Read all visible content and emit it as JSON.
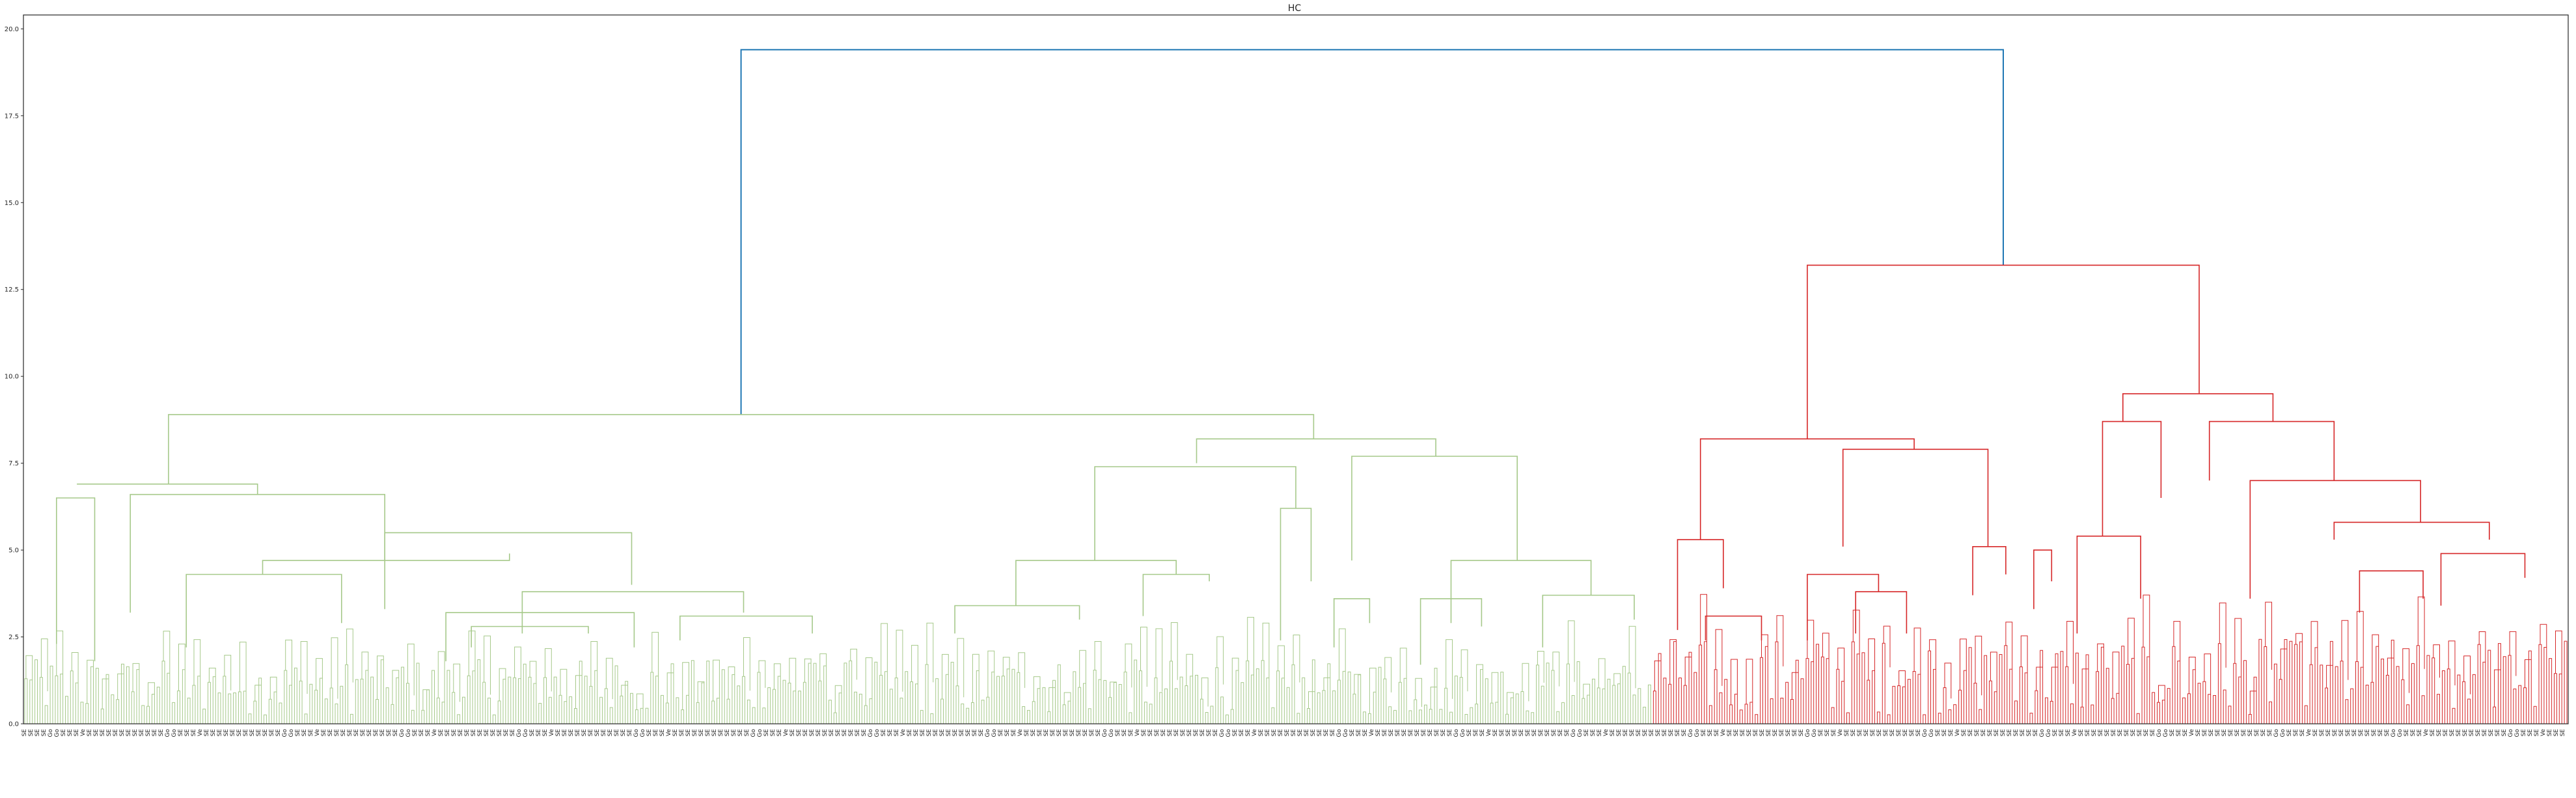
{
  "chart_data": {
    "type": "dendrogram",
    "title": "HC",
    "xlabel": "",
    "ylabel": "",
    "ylim": [
      0,
      20.4
    ],
    "yticks": [
      {
        "value": 0.0,
        "label": "0.0"
      },
      {
        "value": 2.5,
        "label": "2.5"
      },
      {
        "value": 5.0,
        "label": "5.0"
      },
      {
        "value": 7.5,
        "label": "7.5"
      },
      {
        "value": 10.0,
        "label": "10.0"
      },
      {
        "value": 12.5,
        "label": "12.5"
      },
      {
        "value": 15.0,
        "label": "15.0"
      },
      {
        "value": 17.5,
        "label": "17.5"
      },
      {
        "value": 20.0,
        "label": "20.0"
      }
    ],
    "grid": false,
    "colors": {
      "root": "#1f77b4",
      "cluster_green": "#a6c98a",
      "cluster_red": "#d62728",
      "axes": "#262626",
      "background": "#ffffff"
    },
    "leaf_count": 1000,
    "clusters": [
      {
        "color": "cluster_green",
        "leaf_fraction": 0.64,
        "merge_height": 8.9
      },
      {
        "color": "cluster_red",
        "leaf_fraction": 0.36,
        "merge_height": 13.2
      }
    ],
    "root_merge_height": 19.4,
    "leaf_labels_sample": [
      "SE",
      "SE",
      "SE",
      "SE",
      "Go",
      "Go",
      "SE",
      "SE",
      "SE",
      "Ve",
      "SE",
      "SE",
      "SE",
      "SE",
      "SE",
      "SE",
      "SE",
      "SE"
    ],
    "links": [
      {
        "x": [
          0.282,
          0.282,
          0.778,
          0.778
        ],
        "y": [
          8.9,
          19.4,
          19.4,
          13.2
        ],
        "color": "root"
      },
      {
        "x": [
          0.057,
          0.057,
          0.507,
          0.507
        ],
        "y": [
          6.9,
          8.9,
          8.9,
          8.2
        ],
        "color": "cluster_green"
      },
      {
        "x": [
          0.021,
          0.021,
          0.092,
          0.092
        ],
        "y": [
          6.9,
          6.9,
          6.9,
          6.6
        ],
        "color": "cluster_green"
      },
      {
        "x": [
          0.013,
          0.013,
          0.028,
          0.028
        ],
        "y": [
          2.3,
          6.5,
          6.5,
          1.8
        ],
        "color": "cluster_green"
      },
      {
        "x": [
          0.042,
          0.042,
          0.142,
          0.142
        ],
        "y": [
          3.2,
          6.6,
          6.6,
          4.7
        ],
        "color": "cluster_green"
      },
      {
        "x": [
          0.064,
          0.064,
          0.125,
          0.125
        ],
        "y": [
          2.2,
          4.3,
          4.3,
          2.9
        ],
        "color": "cluster_green"
      },
      {
        "x": [
          0.094,
          0.094,
          0.191,
          0.191
        ],
        "y": [
          4.3,
          4.7,
          4.7,
          4.9
        ],
        "color": "cluster_green"
      },
      {
        "x": [
          0.142,
          0.142,
          0.239,
          0.239
        ],
        "y": [
          3.3,
          5.5,
          5.5,
          4.0
        ],
        "color": "cluster_green"
      },
      {
        "x": [
          0.196,
          0.196,
          0.283,
          0.283
        ],
        "y": [
          2.6,
          3.8,
          3.8,
          3.2
        ],
        "color": "cluster_green"
      },
      {
        "x": [
          0.166,
          0.166,
          0.24,
          0.24
        ],
        "y": [
          1.8,
          3.2,
          3.2,
          2.2
        ],
        "color": "cluster_green"
      },
      {
        "x": [
          0.176,
          0.176,
          0.222,
          0.222
        ],
        "y": [
          2.2,
          2.8,
          2.8,
          2.6
        ],
        "color": "cluster_green"
      },
      {
        "x": [
          0.258,
          0.258,
          0.31,
          0.31
        ],
        "y": [
          2.4,
          3.1,
          3.1,
          2.6
        ],
        "color": "cluster_green"
      },
      {
        "x": [
          0.461,
          0.461,
          0.555,
          0.555
        ],
        "y": [
          7.5,
          8.2,
          8.2,
          7.7
        ],
        "color": "cluster_green"
      },
      {
        "x": [
          0.421,
          0.421,
          0.5,
          0.5
        ],
        "y": [
          4.7,
          7.4,
          7.4,
          6.2
        ],
        "color": "cluster_green"
      },
      {
        "x": [
          0.39,
          0.39,
          0.453,
          0.453
        ],
        "y": [
          3.4,
          4.7,
          4.7,
          4.3
        ],
        "color": "cluster_green"
      },
      {
        "x": [
          0.366,
          0.366,
          0.415,
          0.415
        ],
        "y": [
          2.6,
          3.4,
          3.4,
          3.0
        ],
        "color": "cluster_green"
      },
      {
        "x": [
          0.44,
          0.44,
          0.466,
          0.466
        ],
        "y": [
          3.1,
          4.3,
          4.3,
          4.1
        ],
        "color": "cluster_green"
      },
      {
        "x": [
          0.494,
          0.494,
          0.506,
          0.506
        ],
        "y": [
          2.4,
          6.2,
          6.2,
          4.1
        ],
        "color": "cluster_green"
      },
      {
        "x": [
          0.522,
          0.522,
          0.587,
          0.587
        ],
        "y": [
          4.7,
          7.7,
          7.7,
          4.7
        ],
        "color": "cluster_green"
      },
      {
        "x": [
          0.515,
          0.515,
          0.529,
          0.529
        ],
        "y": [
          2.2,
          3.6,
          3.6,
          2.9
        ],
        "color": "cluster_green"
      },
      {
        "x": [
          0.561,
          0.561,
          0.616,
          0.616
        ],
        "y": [
          2.9,
          4.7,
          4.7,
          3.7
        ],
        "color": "cluster_green"
      },
      {
        "x": [
          0.549,
          0.549,
          0.573,
          0.573
        ],
        "y": [
          1.7,
          3.6,
          3.6,
          2.8
        ],
        "color": "cluster_green"
      },
      {
        "x": [
          0.597,
          0.597,
          0.633,
          0.633
        ],
        "y": [
          2.2,
          3.7,
          3.7,
          3.0
        ],
        "color": "cluster_green"
      },
      {
        "x": [
          0.701,
          0.701,
          0.855,
          0.855
        ],
        "y": [
          8.2,
          13.2,
          13.2,
          9.5
        ],
        "color": "cluster_red"
      },
      {
        "x": [
          0.659,
          0.659,
          0.743,
          0.743
        ],
        "y": [
          5.3,
          8.2,
          8.2,
          7.9
        ],
        "color": "cluster_red"
      },
      {
        "x": [
          0.65,
          0.65,
          0.668,
          0.668
        ],
        "y": [
          2.7,
          5.3,
          5.3,
          3.9
        ],
        "color": "cluster_red"
      },
      {
        "x": [
          0.661,
          0.661,
          0.683,
          0.683
        ],
        "y": [
          2.4,
          3.1,
          3.1,
          2.4
        ],
        "color": "cluster_red"
      },
      {
        "x": [
          0.715,
          0.715,
          0.772,
          0.772
        ],
        "y": [
          5.1,
          7.9,
          7.9,
          5.1
        ],
        "color": "cluster_red"
      },
      {
        "x": [
          0.701,
          0.701,
          0.729,
          0.729
        ],
        "y": [
          2.4,
          4.3,
          4.3,
          3.8
        ],
        "color": "cluster_red"
      },
      {
        "x": [
          0.72,
          0.72,
          0.74,
          0.74
        ],
        "y": [
          2.6,
          3.8,
          3.8,
          2.6
        ],
        "color": "cluster_red"
      },
      {
        "x": [
          0.766,
          0.766,
          0.779,
          0.779
        ],
        "y": [
          3.7,
          5.1,
          5.1,
          4.3
        ],
        "color": "cluster_red"
      },
      {
        "x": [
          0.79,
          0.79,
          0.797,
          0.797
        ],
        "y": [
          3.3,
          5.0,
          5.0,
          4.1
        ],
        "color": "cluster_red"
      },
      {
        "x": [
          0.825,
          0.825,
          0.884,
          0.884
        ],
        "y": [
          8.7,
          9.5,
          9.5,
          8.7
        ],
        "color": "cluster_red"
      },
      {
        "x": [
          0.817,
          0.817,
          0.84,
          0.84
        ],
        "y": [
          5.4,
          8.7,
          8.7,
          6.5
        ],
        "color": "cluster_red"
      },
      {
        "x": [
          0.807,
          0.807,
          0.832,
          0.832
        ],
        "y": [
          2.6,
          5.4,
          5.4,
          3.6
        ],
        "color": "cluster_red"
      },
      {
        "x": [
          0.859,
          0.859,
          0.908,
          0.908
        ],
        "y": [
          7.0,
          8.7,
          8.7,
          7.0
        ],
        "color": "cluster_red"
      },
      {
        "x": [
          0.875,
          0.875,
          0.942,
          0.942
        ],
        "y": [
          3.6,
          7.0,
          7.0,
          5.8
        ],
        "color": "cluster_red"
      },
      {
        "x": [
          0.908,
          0.908,
          0.969,
          0.969
        ],
        "y": [
          5.3,
          5.8,
          5.8,
          5.3
        ],
        "color": "cluster_red"
      },
      {
        "x": [
          0.918,
          0.918,
          0.943,
          0.943
        ],
        "y": [
          3.2,
          4.4,
          4.4,
          3.6
        ],
        "color": "cluster_red"
      },
      {
        "x": [
          0.95,
          0.95,
          0.983,
          0.983
        ],
        "y": [
          3.4,
          4.9,
          4.9,
          4.2
        ],
        "color": "cluster_red"
      }
    ]
  }
}
